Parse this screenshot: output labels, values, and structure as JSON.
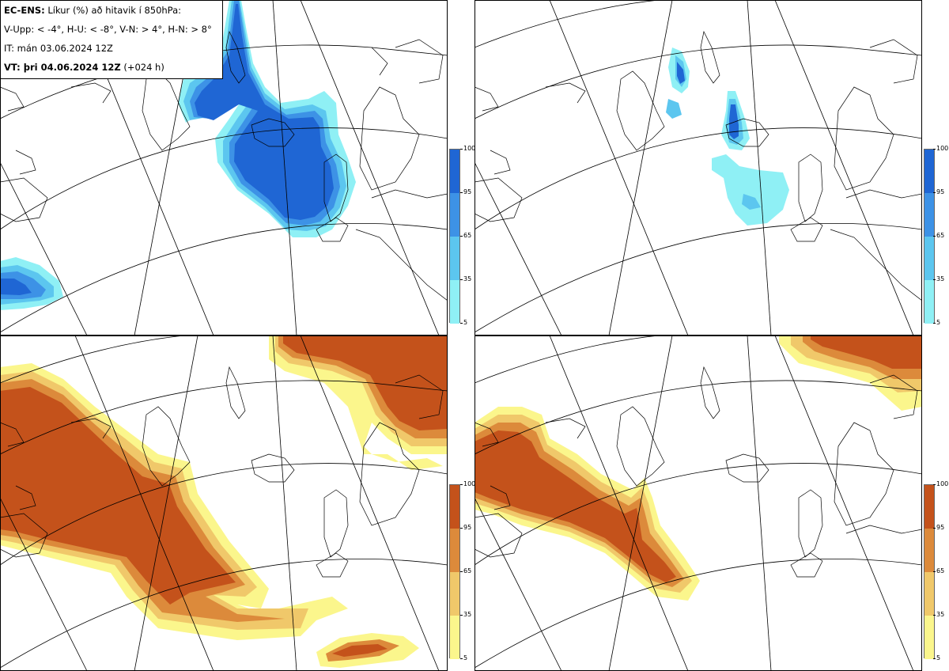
{
  "header": {
    "model": "EC-ENS:",
    "title": "Líkur (%) að hitavik í 850hPa:",
    "legend_line": "V-Upp: < -4°, H-U: < -8°, V-N: > 4°, H-N: > 8°",
    "init_time": "IT: mán 03.06.2024 12Z",
    "valid_prefix": "VT: þri 04.06.2024 12Z",
    "valid_suffix": "(+024 h)"
  },
  "colorbar": {
    "ticks": [
      "100",
      "95",
      "65",
      "35",
      "5"
    ],
    "cold_colors": [
      "#1f66d4",
      "#3d92e6",
      "#5cc6ef",
      "#8ff0f5"
    ],
    "warm_colors": [
      "#c4521b",
      "#dc8a3b",
      "#f0c86a",
      "#fbf68c"
    ]
  },
  "panels": [
    {
      "id": "V-Upp",
      "threshold": "< -4°",
      "scheme": "cold"
    },
    {
      "id": "H-U",
      "threshold": "< -8°",
      "scheme": "cold"
    },
    {
      "id": "V-N",
      "threshold": "> 4°",
      "scheme": "warm"
    },
    {
      "id": "H-N",
      "threshold": "> 8°",
      "scheme": "warm"
    }
  ]
}
